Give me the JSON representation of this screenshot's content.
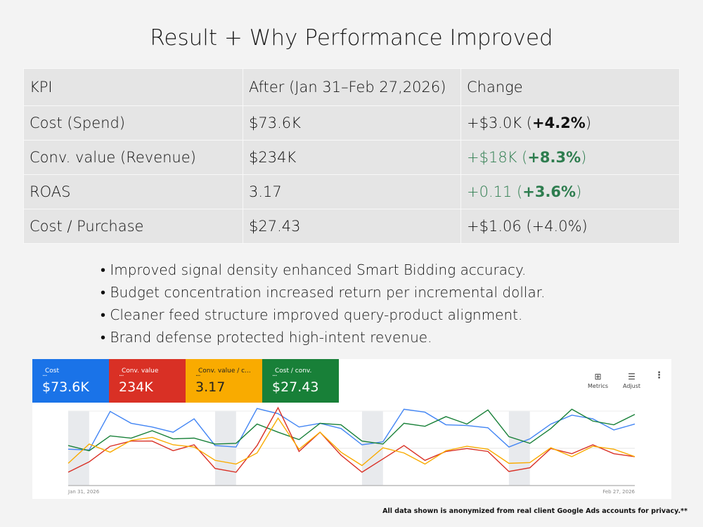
{
  "title": "Result + Why Performance Improved",
  "table": {
    "headers": [
      "KPI",
      "After (Jan 31–Feb 27,2026)",
      "Change"
    ],
    "rows": [
      {
        "kpi": "Cost (Spend)",
        "after": "$73.6K",
        "change_abs": "+$3.0K",
        "change_pct": "+4.2%",
        "positive": false
      },
      {
        "kpi": "Conv. value (Revenue)",
        "after": "$234K",
        "change_abs": "+$18K",
        "change_pct": "+8.3%",
        "positive": true
      },
      {
        "kpi": "ROAS",
        "after": "3.17",
        "change_abs": "+0.11",
        "change_pct": "+3.6%",
        "positive": true
      },
      {
        "kpi": "Cost / Purchase",
        "after": "$27.43",
        "change_abs": "+$1.06",
        "change_pct": "+4.0%",
        "positive": false
      }
    ]
  },
  "bullets": [
    "Improved signal density enhanced Smart Bidding accuracy.",
    "Budget concentration increased return per incremental dollar.",
    "Cleaner feed structure improved query-product alignment.",
    "Brand defense protected high-intent revenue."
  ],
  "metrics": [
    {
      "label": "Cost",
      "value": "$73.6K",
      "color": "#1a73e8"
    },
    {
      "label": "Conv. value",
      "value": "234K",
      "color": "#d93025"
    },
    {
      "label": "Conv. value / c...",
      "value": "3.17",
      "color": "#f9ab00"
    },
    {
      "label": "Cost / conv.",
      "value": "$27.43",
      "color": "#188038"
    }
  ],
  "toolbar": {
    "metrics": "Metrics",
    "adjust": "Adjust",
    "more_icon": "more-vert-icon"
  },
  "chart_data": {
    "type": "line",
    "x_start_label": "Jan 31, 2026",
    "x_end_label": "Feb 27, 2026",
    "weekend_shading_indices": [
      [
        0,
        1
      ],
      [
        7,
        8
      ],
      [
        14,
        15
      ],
      [
        21,
        22
      ]
    ],
    "ylim": [
      0,
      110
    ],
    "series": [
      {
        "name": "Cost",
        "color": "#4285f4",
        "values": [
          49,
          48,
          100,
          84,
          79,
          72,
          90,
          54,
          52,
          104,
          97,
          79,
          84,
          77,
          55,
          59,
          103,
          99,
          82,
          81,
          78,
          52,
          63,
          83,
          95,
          90,
          75,
          83
        ]
      },
      {
        "name": "Cost / conv.",
        "color": "#188038",
        "values": [
          54,
          47,
          67,
          64,
          74,
          63,
          64,
          56,
          57,
          83,
          72,
          62,
          84,
          82,
          60,
          56,
          84,
          80,
          93,
          83,
          102,
          66,
          57,
          77,
          103,
          87,
          82,
          96
        ]
      },
      {
        "name": "Conv. value",
        "color": "#d93025",
        "values": [
          18,
          32,
          53,
          60,
          60,
          47,
          55,
          23,
          18,
          54,
          105,
          46,
          72,
          41,
          18,
          36,
          54,
          34,
          46,
          50,
          46,
          19,
          24,
          50,
          43,
          55,
          43,
          39
        ]
      },
      {
        "name": "Conv. value / c...",
        "color": "#f9ab00",
        "values": [
          30,
          56,
          45,
          61,
          65,
          55,
          52,
          34,
          29,
          44,
          91,
          49,
          72,
          45,
          27,
          51,
          44,
          29,
          47,
          53,
          49,
          30,
          31,
          51,
          39,
          53,
          49,
          39
        ]
      }
    ]
  },
  "footer": "All data shown is anonymized from real client Google Ads accounts for privacy.**"
}
